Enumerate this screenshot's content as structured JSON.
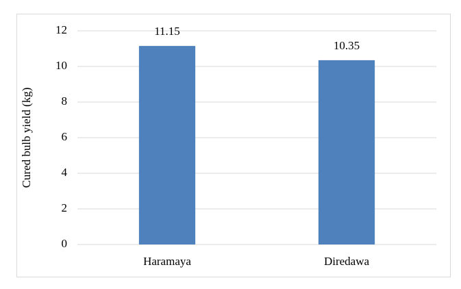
{
  "chart_data": {
    "type": "bar",
    "y_label": "Cured bulb yield (kg)",
    "categories": [
      "Haramaya",
      "Diredawa"
    ],
    "values": [
      11.15,
      10.35
    ],
    "color": "#4f81bd",
    "ylim": [
      0,
      12
    ],
    "yticks": [
      0,
      2,
      4,
      6,
      8,
      10,
      12
    ],
    "grid": true
  }
}
